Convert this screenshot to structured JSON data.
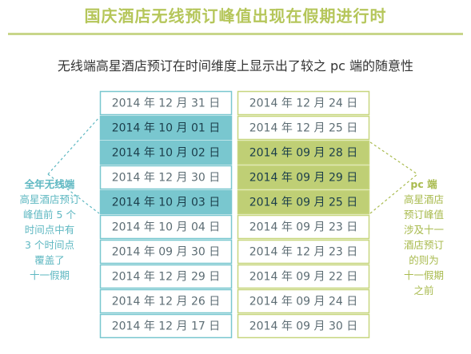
{
  "title": "国庆酒店无线预订峰值出现在假期进行时",
  "subtitle": "无线端高星酒店预订在时间维度上显示出了较之 pc 端的随意性",
  "colors": {
    "mobile_highlight": "#79c7cf",
    "mobile_border": "#79c7cf",
    "mobile_text": "#5fb8c2",
    "pc_highlight": "#bfcf75",
    "pc_border": "#c7d67f",
    "pc_text": "#a9bb4f",
    "highlight_text": "#1a3d4a",
    "plain_text": "#5d6d74"
  },
  "chart_data": {
    "type": "table",
    "columns": [
      {
        "key": "mobile",
        "rows": [
          {
            "label": "2014 年 12 月 31 日",
            "highlight": false
          },
          {
            "label": "2014 年 10 月 01 日",
            "highlight": true
          },
          {
            "label": "2014 年 10 月 02 日",
            "highlight": true
          },
          {
            "label": "2014 年 12 月 30 日",
            "highlight": false
          },
          {
            "label": "2014 年 10 月 03 日",
            "highlight": true
          },
          {
            "label": "2014 年 10 月 04 日",
            "highlight": false
          },
          {
            "label": "2014 年 09 月 30 日",
            "highlight": false
          },
          {
            "label": "2014 年 12 月 29 日",
            "highlight": false
          },
          {
            "label": "2014 年 12 月 26 日",
            "highlight": false
          },
          {
            "label": "2014 年 12 月 17 日",
            "highlight": false
          }
        ]
      },
      {
        "key": "pc",
        "rows": [
          {
            "label": "2014 年 12 月 24 日",
            "highlight": false
          },
          {
            "label": "2014 年 12 月 25 日",
            "highlight": false
          },
          {
            "label": "2014 年 09 月 28 日",
            "highlight": true
          },
          {
            "label": "2014 年 09 月 29 日",
            "highlight": true
          },
          {
            "label": "2014 年 09 月 25 日",
            "highlight": true
          },
          {
            "label": "2014 年 09 月 23 日",
            "highlight": false
          },
          {
            "label": "2014 年 12 月 23 日",
            "highlight": false
          },
          {
            "label": "2014 年 09 月 22 日",
            "highlight": false
          },
          {
            "label": "2014 年 09 月 24 日",
            "highlight": false
          },
          {
            "label": "2014 年 09 月 30 日",
            "highlight": false
          }
        ]
      }
    ],
    "annotations": {
      "mobile": {
        "title": "全年无线端",
        "lines": [
          "高星酒店预订",
          "峰值前 5 个",
          "时间点中有",
          "3 个时间点",
          "覆盖了",
          "十一假期"
        ]
      },
      "pc": {
        "title": "pc 端",
        "lines": [
          "高星酒店",
          "预订峰值",
          "涉及十一",
          "酒店预订",
          "的则为",
          "十一假期",
          "之前"
        ]
      }
    }
  }
}
